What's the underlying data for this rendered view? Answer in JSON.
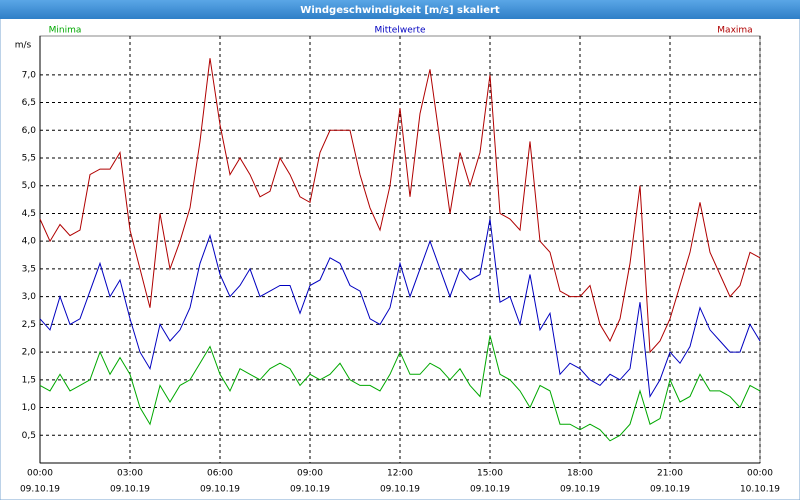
{
  "chart_data": {
    "type": "line",
    "title": "Windgeschwindigkeit [m/s] skaliert",
    "y_label": "m/s",
    "x": [
      0,
      0.333,
      0.667,
      1,
      1.333,
      1.667,
      2,
      2.333,
      2.667,
      3,
      3.333,
      3.667,
      4,
      4.333,
      4.667,
      5,
      5.333,
      5.667,
      6,
      6.333,
      6.667,
      7,
      7.333,
      7.667,
      8,
      8.333,
      8.667,
      9,
      9.333,
      9.667,
      10,
      10.333,
      10.667,
      11,
      11.333,
      11.667,
      12,
      12.333,
      12.667,
      13,
      13.333,
      13.667,
      14,
      14.333,
      14.667,
      15,
      15.333,
      15.667,
      16,
      16.333,
      16.667,
      17,
      17.333,
      17.667,
      18,
      18.333,
      18.667,
      19,
      19.333,
      19.667,
      20,
      20.333,
      20.667,
      21,
      21.333,
      21.667,
      22,
      22.333,
      22.667,
      23,
      23.333,
      23.667,
      24
    ],
    "series": [
      {
        "name": "Minima",
        "color": "#00a800",
        "values": [
          1.4,
          1.3,
          1.6,
          1.3,
          1.4,
          1.5,
          2.0,
          1.6,
          1.9,
          1.6,
          1.0,
          0.7,
          1.4,
          1.1,
          1.4,
          1.5,
          1.8,
          2.1,
          1.6,
          1.3,
          1.7,
          1.6,
          1.5,
          1.7,
          1.8,
          1.7,
          1.4,
          1.6,
          1.5,
          1.6,
          1.8,
          1.5,
          1.4,
          1.4,
          1.3,
          1.6,
          2.0,
          1.6,
          1.6,
          1.8,
          1.7,
          1.5,
          1.7,
          1.4,
          1.2,
          2.3,
          1.6,
          1.5,
          1.3,
          1.0,
          1.4,
          1.3,
          0.7,
          0.7,
          0.6,
          0.7,
          0.6,
          0.4,
          0.5,
          0.7,
          1.3,
          0.7,
          0.8,
          1.5,
          1.1,
          1.2,
          1.6,
          1.3,
          1.3,
          1.2,
          1.0,
          1.4,
          1.3
        ]
      },
      {
        "name": "Mittelwerte",
        "color": "#0000c0",
        "values": [
          2.6,
          2.4,
          3.0,
          2.5,
          2.6,
          3.1,
          3.6,
          3.0,
          3.3,
          2.6,
          2.0,
          1.7,
          2.5,
          2.2,
          2.4,
          2.8,
          3.6,
          4.1,
          3.4,
          3.0,
          3.2,
          3.5,
          3.0,
          3.1,
          3.2,
          3.2,
          2.7,
          3.2,
          3.3,
          3.7,
          3.6,
          3.2,
          3.1,
          2.6,
          2.5,
          2.8,
          3.6,
          3.0,
          3.5,
          4.0,
          3.5,
          3.0,
          3.5,
          3.3,
          3.4,
          4.4,
          2.9,
          3.0,
          2.5,
          3.4,
          2.4,
          2.7,
          1.6,
          1.8,
          1.7,
          1.5,
          1.4,
          1.6,
          1.5,
          1.7,
          2.9,
          1.2,
          1.5,
          2.0,
          1.8,
          2.1,
          2.8,
          2.4,
          2.2,
          2.0,
          2.0,
          2.5,
          2.2
        ]
      },
      {
        "name": "Maxima",
        "color": "#b00000",
        "values": [
          4.4,
          4.0,
          4.3,
          4.1,
          4.2,
          5.2,
          5.3,
          5.3,
          5.6,
          4.2,
          3.5,
          2.8,
          4.5,
          3.5,
          4.0,
          4.6,
          5.8,
          7.3,
          6.1,
          5.2,
          5.5,
          5.2,
          4.8,
          4.9,
          5.5,
          5.2,
          4.8,
          4.7,
          5.6,
          6.0,
          6.0,
          6.0,
          5.2,
          4.6,
          4.2,
          5.0,
          6.4,
          4.8,
          6.3,
          7.1,
          5.8,
          4.5,
          5.6,
          5.0,
          5.6,
          7.0,
          4.5,
          4.4,
          4.2,
          5.8,
          4.0,
          3.8,
          3.1,
          3.0,
          3.0,
          3.2,
          2.5,
          2.2,
          2.6,
          3.6,
          5.0,
          2.0,
          2.2,
          2.6,
          3.2,
          3.8,
          4.7,
          3.8,
          3.4,
          3.0,
          3.2,
          3.8,
          3.7
        ]
      }
    ],
    "xlim": [
      0,
      24
    ],
    "xticks": [
      {
        "value": 0,
        "label": "00:00"
      },
      {
        "value": 3,
        "label": "03:00"
      },
      {
        "value": 6,
        "label": "06:00"
      },
      {
        "value": 9,
        "label": "09:00"
      },
      {
        "value": 12,
        "label": "12:00"
      },
      {
        "value": 15,
        "label": "15:00"
      },
      {
        "value": 18,
        "label": "18:00"
      },
      {
        "value": 21,
        "label": "21:00"
      },
      {
        "value": 24,
        "label": "00:00"
      }
    ],
    "xtick_dates": [
      "09.10.19",
      "09.10.19",
      "09.10.19",
      "09.10.19",
      "09.10.19",
      "09.10.19",
      "09.10.19",
      "09.10.19",
      "10.10.19"
    ],
    "ylim": [
      0,
      7.7
    ],
    "yticks": [
      {
        "value": 0.5,
        "label": "0,5"
      },
      {
        "value": 1.0,
        "label": "1,0"
      },
      {
        "value": 1.5,
        "label": "1,5"
      },
      {
        "value": 2.0,
        "label": "2,0"
      },
      {
        "value": 2.5,
        "label": "2,5"
      },
      {
        "value": 3.0,
        "label": "3,0"
      },
      {
        "value": 3.5,
        "label": "3,5"
      },
      {
        "value": 4.0,
        "label": "4,0"
      },
      {
        "value": 4.5,
        "label": "4,5"
      },
      {
        "value": 5.0,
        "label": "5,0"
      },
      {
        "value": 5.5,
        "label": "5,5"
      },
      {
        "value": 6.0,
        "label": "6,0"
      },
      {
        "value": 6.5,
        "label": "6,5"
      },
      {
        "value": 7.0,
        "label": "7,0"
      }
    ],
    "grid": true
  }
}
